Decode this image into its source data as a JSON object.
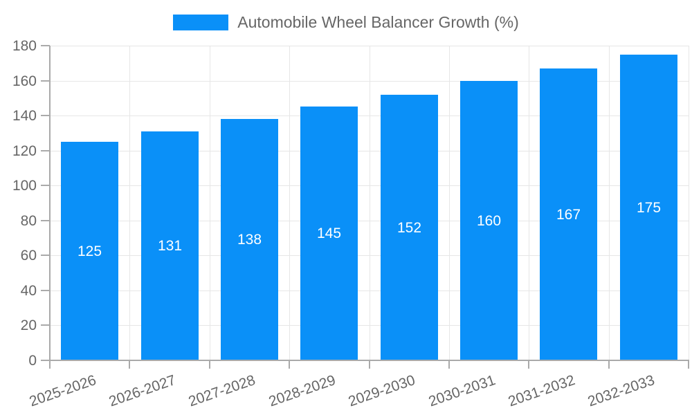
{
  "colors": {
    "bar": "#0a90f8",
    "axis": "#aaaaaa",
    "grid": "#e6e6e6",
    "text": "#666666",
    "value_label": "#ffffff",
    "background": "#ffffff"
  },
  "legend": {
    "label": "Automobile Wheel Balancer Growth (%)"
  },
  "chart_data": {
    "type": "bar",
    "title": "Automobile Wheel Balancer Growth (%)",
    "categories": [
      "2025-2026",
      "2026-2027",
      "2027-2028",
      "2028-2029",
      "2029-2030",
      "2030-2031",
      "2031-2032",
      "2032-2033"
    ],
    "values": [
      125,
      131,
      138,
      145,
      152,
      160,
      167,
      175
    ],
    "xlabel": "",
    "ylabel": "",
    "ylim": [
      0,
      180
    ],
    "ytick_step": 20,
    "yticks": [
      0,
      20,
      40,
      60,
      80,
      100,
      120,
      140,
      160,
      180
    ],
    "grid": true,
    "legend_position": "top-center",
    "value_labels": "inside-center",
    "x_tick_rotation_deg": -19
  }
}
